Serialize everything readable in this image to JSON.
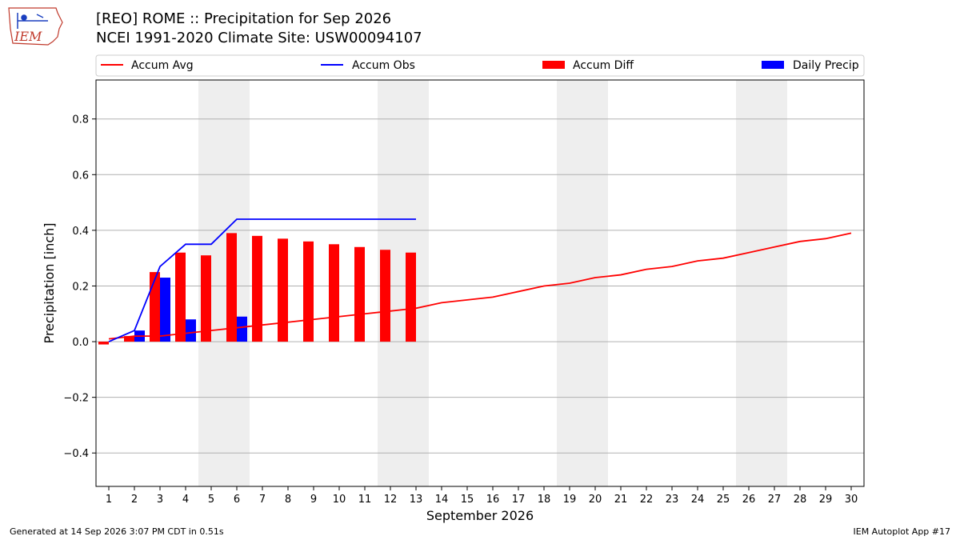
{
  "header": {
    "title_line1": "[REO] ROME :: Precipitation for Sep 2026",
    "title_line2": "NCEI 1991-2020 Climate Site: USW00094107"
  },
  "logo": {
    "text": "IEM",
    "icon": "iem-state-outline-logo"
  },
  "footer": {
    "left": "Generated at 14 Sep 2026 3:07 PM CDT in 0.51s",
    "right": "IEM Autoplot App #17"
  },
  "colors": {
    "accum_avg": "#ff0000",
    "accum_obs": "#0000ff",
    "accum_diff": "#ff0000",
    "daily_precip": "#0000ff",
    "weekend_shade": "#eeeeee",
    "grid": "#b0b0b0",
    "logo": "#c0392b"
  },
  "chart_data": {
    "type": "bar",
    "xlabel": "September 2026",
    "ylabel": "Precipitation [inch]",
    "ylim": [
      -0.52,
      0.94
    ],
    "yticks": [
      -0.4,
      -0.2,
      0.0,
      0.2,
      0.4,
      0.6,
      0.8
    ],
    "ytick_labels": [
      "−0.4",
      "−0.2",
      "0.0",
      "0.2",
      "0.4",
      "0.6",
      "0.8"
    ],
    "x": [
      1,
      2,
      3,
      4,
      5,
      6,
      7,
      8,
      9,
      10,
      11,
      12,
      13,
      14,
      15,
      16,
      17,
      18,
      19,
      20,
      21,
      22,
      23,
      24,
      25,
      26,
      27,
      28,
      29,
      30
    ],
    "x_tick_labels": [
      "1",
      "2",
      "3",
      "4",
      "5",
      "6",
      "7",
      "8",
      "9",
      "10",
      "11",
      "12",
      "13",
      "14",
      "15",
      "16",
      "17",
      "18",
      "19",
      "20",
      "21",
      "22",
      "23",
      "24",
      "25",
      "26",
      "27",
      "28",
      "29",
      "30"
    ],
    "grid": "y",
    "legend_placement": "top",
    "weekend_ranges": [
      [
        5,
        6
      ],
      [
        12,
        13
      ],
      [
        19,
        20
      ],
      [
        26,
        27
      ]
    ],
    "series": [
      {
        "name": "Accum Avg",
        "type": "line",
        "x": [
          1,
          2,
          3,
          4,
          5,
          6,
          7,
          8,
          9,
          10,
          11,
          12,
          13,
          14,
          15,
          16,
          17,
          18,
          19,
          20,
          21,
          22,
          23,
          24,
          25,
          26,
          27,
          28,
          29,
          30
        ],
        "values": [
          0.01,
          0.02,
          0.02,
          0.03,
          0.04,
          0.05,
          0.06,
          0.07,
          0.08,
          0.09,
          0.1,
          0.11,
          0.12,
          0.14,
          0.15,
          0.16,
          0.18,
          0.2,
          0.21,
          0.23,
          0.24,
          0.26,
          0.27,
          0.29,
          0.3,
          0.32,
          0.34,
          0.36,
          0.37,
          0.39
        ]
      },
      {
        "name": "Accum Obs",
        "type": "line",
        "x": [
          1,
          2,
          3,
          4,
          5,
          6,
          7,
          8,
          9,
          10,
          11,
          12,
          13
        ],
        "values": [
          0.0,
          0.04,
          0.27,
          0.35,
          0.35,
          0.44,
          0.44,
          0.44,
          0.44,
          0.44,
          0.44,
          0.44,
          0.44
        ]
      },
      {
        "name": "Accum Diff",
        "type": "bar",
        "x": [
          1,
          2,
          3,
          4,
          5,
          6,
          7,
          8,
          9,
          10,
          11,
          12,
          13
        ],
        "values": [
          -0.01,
          0.02,
          0.25,
          0.32,
          0.31,
          0.39,
          0.38,
          0.37,
          0.36,
          0.35,
          0.34,
          0.33,
          0.32
        ]
      },
      {
        "name": "Daily Precip",
        "type": "bar",
        "x": [
          2,
          3,
          4,
          6
        ],
        "values": [
          0.04,
          0.23,
          0.08,
          0.09
        ]
      }
    ]
  }
}
